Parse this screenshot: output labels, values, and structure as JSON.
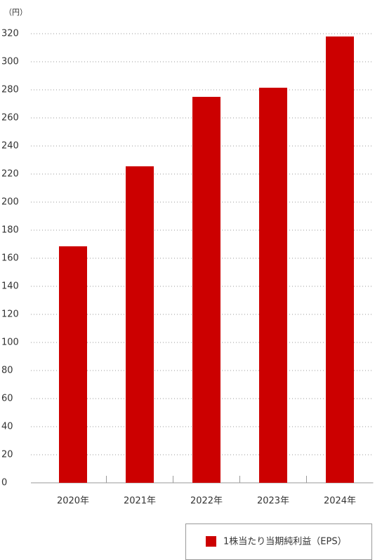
{
  "chart_data": {
    "type": "bar",
    "unit_label": "（円）",
    "categories": [
      "2020年",
      "2021年",
      "2022年",
      "2023年",
      "2024年"
    ],
    "series": [
      {
        "name": "1株当たり当期純利益（EPS）",
        "color": "#cc0000",
        "values": [
          168.5,
          225.5,
          275,
          281.5,
          318
        ]
      }
    ],
    "ylim": [
      0,
      320
    ],
    "yticks": [
      0,
      20,
      40,
      60,
      80,
      100,
      120,
      140,
      160,
      180,
      200,
      220,
      240,
      260,
      280,
      300,
      320
    ],
    "grid": true
  }
}
